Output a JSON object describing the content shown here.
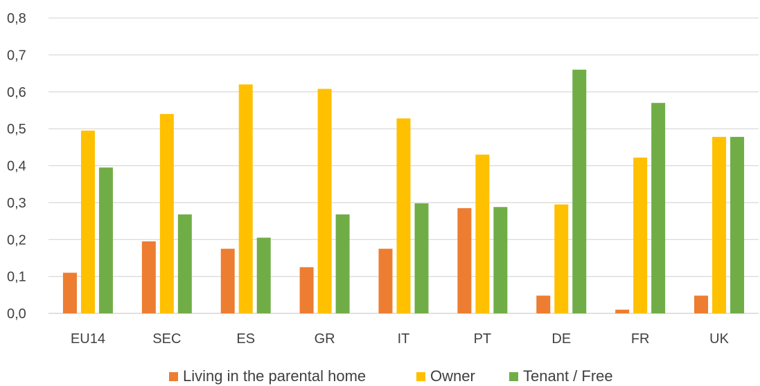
{
  "chart_data": {
    "type": "bar",
    "title": "",
    "xlabel": "",
    "ylabel": "",
    "categories": [
      "EU14",
      "SEC",
      "ES",
      "GR",
      "IT",
      "PT",
      "DE",
      "FR",
      "UK"
    ],
    "series": [
      {
        "name": "Living in the parental home",
        "color": "#ED7D31",
        "values": [
          0.11,
          0.195,
          0.175,
          0.125,
          0.175,
          0.285,
          0.048,
          0.01,
          0.048
        ]
      },
      {
        "name": "Owner",
        "color": "#FFC000",
        "values": [
          0.495,
          0.54,
          0.62,
          0.608,
          0.528,
          0.43,
          0.295,
          0.422,
          0.478
        ]
      },
      {
        "name": "Tenant / Free",
        "color": "#70AD47",
        "values": [
          0.395,
          0.268,
          0.205,
          0.268,
          0.298,
          0.288,
          0.66,
          0.57,
          0.478
        ]
      }
    ],
    "ylim": [
      0,
      0.8
    ],
    "yticks": [
      "0,0",
      "0,1",
      "0,2",
      "0,3",
      "0,4",
      "0,5",
      "0,6",
      "0,7",
      "0,8"
    ],
    "grid": true,
    "legend_position": "bottom"
  }
}
